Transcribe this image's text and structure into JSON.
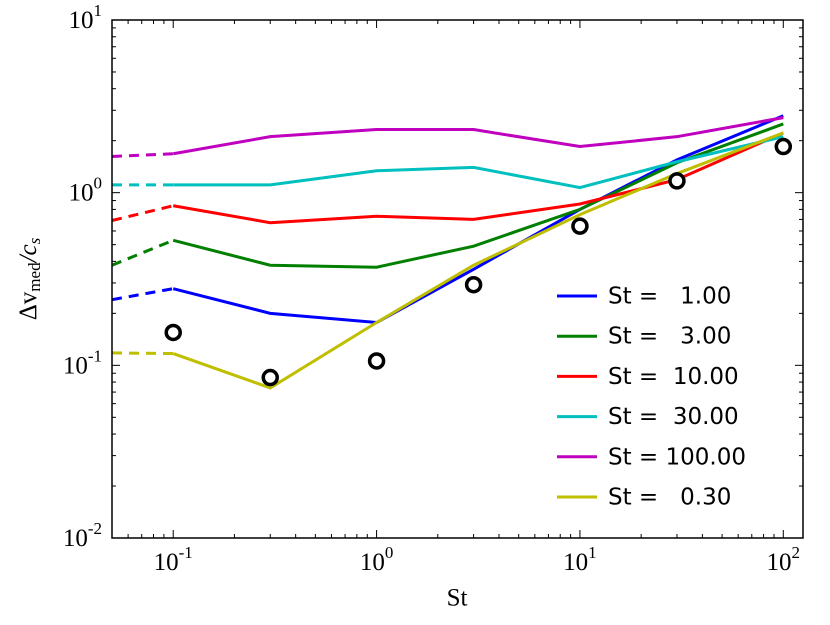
{
  "chart_data": {
    "type": "line",
    "xlabel": "St",
    "ylabel": [
      "Δv",
      "med",
      "/c",
      "s"
    ],
    "log_x": true,
    "log_y": true,
    "xlim": [
      0.05,
      125
    ],
    "ylim": [
      0.01,
      10
    ],
    "xticks": [
      {
        "value": 0.1,
        "label": "10",
        "exponent": "-1"
      },
      {
        "value": 1,
        "label": "10",
        "exponent": "0"
      },
      {
        "value": 10,
        "label": "10",
        "exponent": "1"
      },
      {
        "value": 100,
        "label": "10",
        "exponent": "2"
      }
    ],
    "yticks": [
      {
        "value": 0.01,
        "label": "10",
        "exponent": "-2"
      },
      {
        "value": 0.1,
        "label": "10",
        "exponent": "-1"
      },
      {
        "value": 1,
        "label": "10",
        "exponent": "0"
      },
      {
        "value": 10,
        "label": "10",
        "exponent": "1"
      }
    ],
    "legend": "lower right",
    "x": [
      0.1,
      0.3,
      1,
      3,
      10,
      30,
      100
    ],
    "dashed_x": [
      0.05,
      0.1
    ],
    "series": [
      {
        "name": "St =   1.00",
        "color": "#0000ff",
        "values": [
          0.278,
          0.2,
          0.177,
          0.36,
          0.8,
          1.55,
          2.79
        ],
        "dashed_values": [
          0.24,
          0.278
        ]
      },
      {
        "name": "St =   3.00",
        "color": "#007f00",
        "values": [
          0.53,
          0.38,
          0.37,
          0.49,
          0.8,
          1.49,
          2.5
        ],
        "dashed_values": [
          0.38,
          0.53
        ]
      },
      {
        "name": "St =  10.00",
        "color": "#ff0000",
        "values": [
          0.84,
          0.67,
          0.73,
          0.7,
          0.86,
          1.19,
          2.22
        ],
        "dashed_values": [
          0.69,
          0.84
        ]
      },
      {
        "name": "St =  30.00",
        "color": "#00bfbf",
        "values": [
          1.11,
          1.11,
          1.34,
          1.4,
          1.07,
          1.51,
          2.11
        ],
        "dashed_values": [
          1.11,
          1.11
        ]
      },
      {
        "name": "St = 100.00",
        "color": "#bf00bf",
        "values": [
          1.68,
          2.11,
          2.32,
          2.32,
          1.85,
          2.11,
          2.72
        ],
        "dashed_values": [
          1.62,
          1.68
        ]
      },
      {
        "name": "St =   0.30",
        "color": "#bfbf00",
        "values": [
          0.117,
          0.074,
          0.177,
          0.38,
          0.746,
          1.29,
          2.22
        ],
        "dashed_values": [
          0.118,
          0.117
        ]
      }
    ],
    "markers": {
      "color": "#000000",
      "values": [
        0.155,
        0.085,
        0.106,
        0.293,
        0.64,
        1.17,
        1.85
      ]
    }
  }
}
